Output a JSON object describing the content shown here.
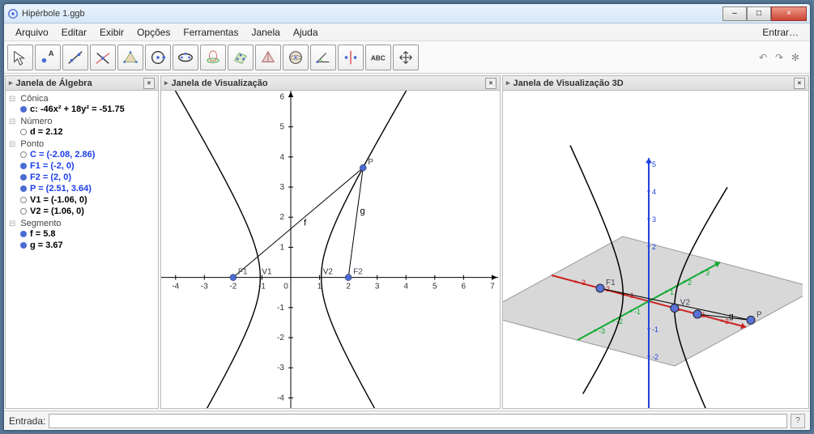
{
  "window": {
    "title": "Hipérbole 1.ggb",
    "minimize": "–",
    "maximize": "□",
    "close": "×"
  },
  "menu": {
    "items": [
      "Arquivo",
      "Editar",
      "Exibir",
      "Opções",
      "Ferramentas",
      "Janela",
      "Ajuda"
    ],
    "right": "Entrar…"
  },
  "toolbar": {
    "right": {
      "undo": "↶",
      "redo": "↷",
      "settings": "✻"
    }
  },
  "panels": {
    "algebra": {
      "title": "Janela de Álgebra",
      "groups": [
        {
          "title": "Cônica",
          "items": [
            {
              "bullet": "fill",
              "style": "bold",
              "text": "c: -46x² + 18y² = -51.75"
            }
          ]
        },
        {
          "title": "Número",
          "items": [
            {
              "bullet": "empty",
              "style": "bold",
              "text": "d = 2.12"
            }
          ]
        },
        {
          "title": "Ponto",
          "items": [
            {
              "bullet": "empty",
              "style": "blue",
              "text": "C = (-2.08, 2.86)"
            },
            {
              "bullet": "fill",
              "style": "blue",
              "text": "F1 = (-2, 0)"
            },
            {
              "bullet": "fill",
              "style": "blue",
              "text": "F2 = (2, 0)"
            },
            {
              "bullet": "fill",
              "style": "blue",
              "text": "P = (2.51, 3.64)"
            },
            {
              "bullet": "empty",
              "style": "bold",
              "text": "V1 = (-1.06, 0)"
            },
            {
              "bullet": "empty",
              "style": "bold",
              "text": "V2 = (1.06, 0)"
            }
          ]
        },
        {
          "title": "Segmento",
          "items": [
            {
              "bullet": "fill",
              "style": "bold",
              "text": "f = 5.8"
            },
            {
              "bullet": "fill",
              "style": "bold",
              "text": "g = 3.67"
            }
          ]
        }
      ]
    },
    "view2d": {
      "title": "Janela de Visualização",
      "x_ticks": [
        -4,
        -3,
        -2,
        -1,
        0,
        1,
        2,
        3,
        4,
        5,
        6,
        7
      ],
      "y_ticks": [
        -4,
        -3,
        -2,
        -1,
        1,
        2,
        3,
        4,
        5,
        6
      ],
      "xmin": -4.5,
      "xmax": 7.2,
      "ymin": -4.5,
      "ymax": 6.2,
      "points": {
        "F1": {
          "x": -2,
          "y": 0,
          "label": "F1"
        },
        "V1": {
          "x": -1.06,
          "y": 0,
          "label": "V1"
        },
        "V2": {
          "x": 1.06,
          "y": 0,
          "label": "V2"
        },
        "F2": {
          "x": 2,
          "y": 0,
          "label": "F2"
        },
        "P": {
          "x": 2.51,
          "y": 3.64,
          "label": "P"
        }
      },
      "seg_labels": {
        "f": "f",
        "g": "g"
      },
      "hyperbola": {
        "a": 1.06,
        "b": 1.7
      },
      "colors": {
        "axis": "#000",
        "point": "#4a6cd4",
        "curve": "#000",
        "seg": "#000"
      }
    },
    "view3d": {
      "title": "Janela de Visualização 3D",
      "axis_colors": {
        "x": "#cc2222",
        "y": "#11aa33",
        "z": "#2244dd"
      },
      "z_ticks": [
        5,
        4,
        3,
        2,
        -1,
        -2
      ],
      "xy_ticks": [
        -3,
        -2,
        -1,
        1,
        2,
        3
      ],
      "plane_color": "#b8b8b8",
      "point_color": "#5b73d6",
      "labels": {
        "F1": "F1",
        "V2": "V2",
        "P": "P",
        "g": "g"
      }
    }
  },
  "input": {
    "label": "Entrada:",
    "value": "",
    "help": "?"
  }
}
